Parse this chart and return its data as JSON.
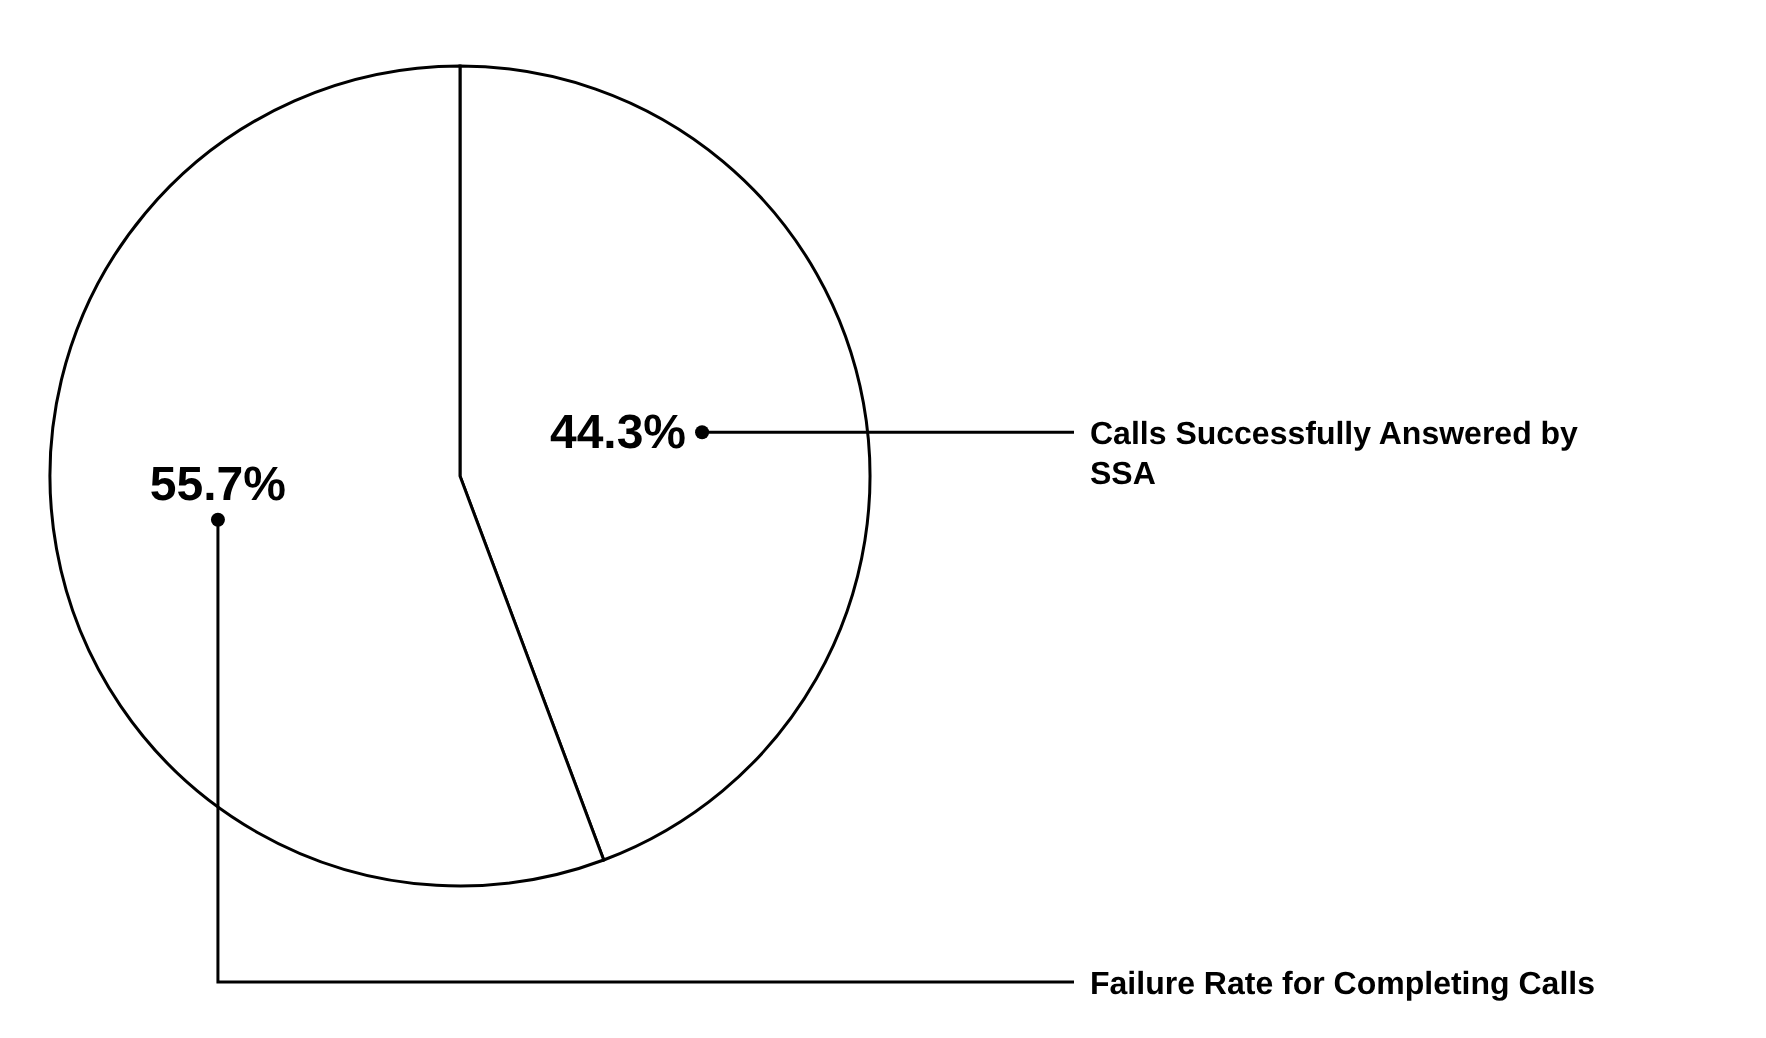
{
  "chart_data": {
    "type": "pie",
    "categories": [
      "Calls Successfully Answered by SSA",
      "Failure Rate for Completing Calls"
    ],
    "values": [
      44.3,
      55.7
    ],
    "value_labels": [
      "44.3%",
      "55.7%"
    ],
    "colors": [
      "#ffffff",
      "#ffffff"
    ],
    "legend": false
  }
}
